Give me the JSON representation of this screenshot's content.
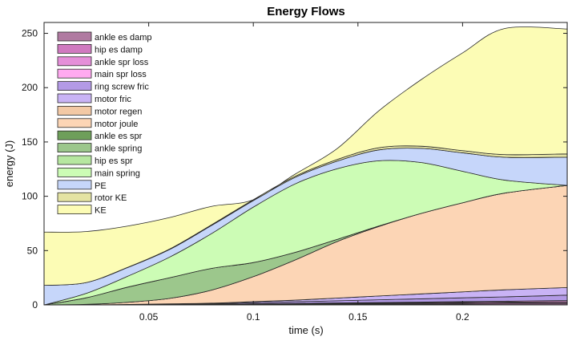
{
  "chart_data": {
    "type": "area",
    "title": "Energy Flows",
    "xlabel": "time (s)",
    "ylabel": "energy (J)",
    "xlim": [
      0.0,
      0.25
    ],
    "ylim": [
      0,
      260
    ],
    "xticks": [
      0.05,
      0.1,
      0.15,
      0.2
    ],
    "xtick_labels": [
      "0.05",
      "0.1",
      "0.15",
      "0.2"
    ],
    "yticks": [
      0,
      50,
      100,
      150,
      200,
      250
    ],
    "ytick_labels": [
      "0",
      "50",
      "100",
      "150",
      "200",
      "250"
    ],
    "legend_position": "top-left",
    "x": [
      0.0,
      0.02,
      0.04,
      0.06,
      0.08,
      0.1,
      0.12,
      0.14,
      0.16,
      0.18,
      0.2,
      0.22,
      0.25
    ],
    "series": [
      {
        "name": "ankle es damp",
        "color": "#b07aa1",
        "values": [
          0,
          0.0,
          0.1,
          0.1,
          0.2,
          0.3,
          0.4,
          0.5,
          0.6,
          0.7,
          0.8,
          0.9,
          1.0
        ]
      },
      {
        "name": "hip es damp",
        "color": "#d07ac0",
        "values": [
          0,
          0.0,
          0.1,
          0.1,
          0.2,
          0.3,
          0.4,
          0.5,
          0.6,
          0.7,
          0.8,
          0.9,
          1.0
        ]
      },
      {
        "name": "ankle spr loss",
        "color": "#e58fd9",
        "values": [
          0,
          0.0,
          0.0,
          0.1,
          0.1,
          0.2,
          0.3,
          0.4,
          0.5,
          0.6,
          0.7,
          0.8,
          1.0
        ]
      },
      {
        "name": "main spr loss",
        "color": "#ffaaf0",
        "values": [
          0,
          0.0,
          0.0,
          0.1,
          0.1,
          0.2,
          0.3,
          0.4,
          0.5,
          0.6,
          0.7,
          0.8,
          1.0
        ]
      },
      {
        "name": "ring screw fric",
        "color": "#b39ae6",
        "values": [
          0,
          0.0,
          0.1,
          0.3,
          0.5,
          1.0,
          1.5,
          2.0,
          2.5,
          3.0,
          3.5,
          4.0,
          5.0
        ]
      },
      {
        "name": "motor fric",
        "color": "#c9b3f5",
        "values": [
          0,
          0.0,
          0.1,
          0.3,
          0.5,
          1.0,
          1.5,
          2.5,
          3.5,
          4.5,
          5.5,
          6.5,
          7.0
        ]
      },
      {
        "name": "motor regen",
        "color": "#f3c9a5",
        "values": [
          0,
          0.0,
          0.0,
          0.0,
          0.0,
          0.0,
          0.0,
          0.0,
          0.0,
          0.0,
          0.0,
          0.0,
          0.0
        ]
      },
      {
        "name": "motor joule",
        "color": "#fcd5b5",
        "values": [
          0,
          0.5,
          2.0,
          5.0,
          12.0,
          23.0,
          37.0,
          52.0,
          64.0,
          74.0,
          82.0,
          89.0,
          94.0
        ]
      },
      {
        "name": "ankle es spr",
        "color": "#6e9f5a",
        "values": [
          0,
          0.0,
          0.0,
          0.0,
          0.0,
          0.0,
          0.0,
          0.0,
          0.0,
          0.0,
          0.0,
          0.0,
          0.0
        ]
      },
      {
        "name": "ankle spring",
        "color": "#9cc78c",
        "values": [
          0,
          6.0,
          14.0,
          19.0,
          20.0,
          13.0,
          7.0,
          2.0,
          0.5,
          0.0,
          0.0,
          0.0,
          0.0
        ]
      },
      {
        "name": "hip es spr",
        "color": "#b6e7a0",
        "values": [
          0,
          0.0,
          0.0,
          0.0,
          0.0,
          0.0,
          0.0,
          0.0,
          0.0,
          0.0,
          0.0,
          0.0,
          0.0
        ]
      },
      {
        "name": "main spring",
        "color": "#ccfcb5",
        "values": [
          0,
          4.0,
          10.0,
          19.0,
          32.0,
          51.0,
          63.0,
          65.0,
          60.0,
          47.0,
          29.0,
          12.0,
          0.0
        ]
      },
      {
        "name": "PE",
        "color": "#c6d6fa",
        "values": [
          18,
          10.0,
          8.0,
          7.0,
          7.5,
          6.0,
          6.0,
          7.0,
          10.0,
          13.0,
          17.0,
          21.0,
          26.0
        ]
      },
      {
        "name": "rotor KE",
        "color": "#e4e3a3",
        "values": [
          0,
          0.0,
          0.2,
          0.4,
          0.6,
          0.8,
          1.0,
          1.5,
          2.0,
          2.0,
          2.0,
          2.5,
          3.0
        ]
      },
      {
        "name": "KE",
        "color": "#fcfcb5",
        "values": [
          49,
          47.0,
          38.0,
          29.0,
          17.0,
          0.0,
          2.0,
          10.0,
          34.0,
          61.0,
          90.0,
          116.0,
          115.0
        ]
      }
    ]
  }
}
